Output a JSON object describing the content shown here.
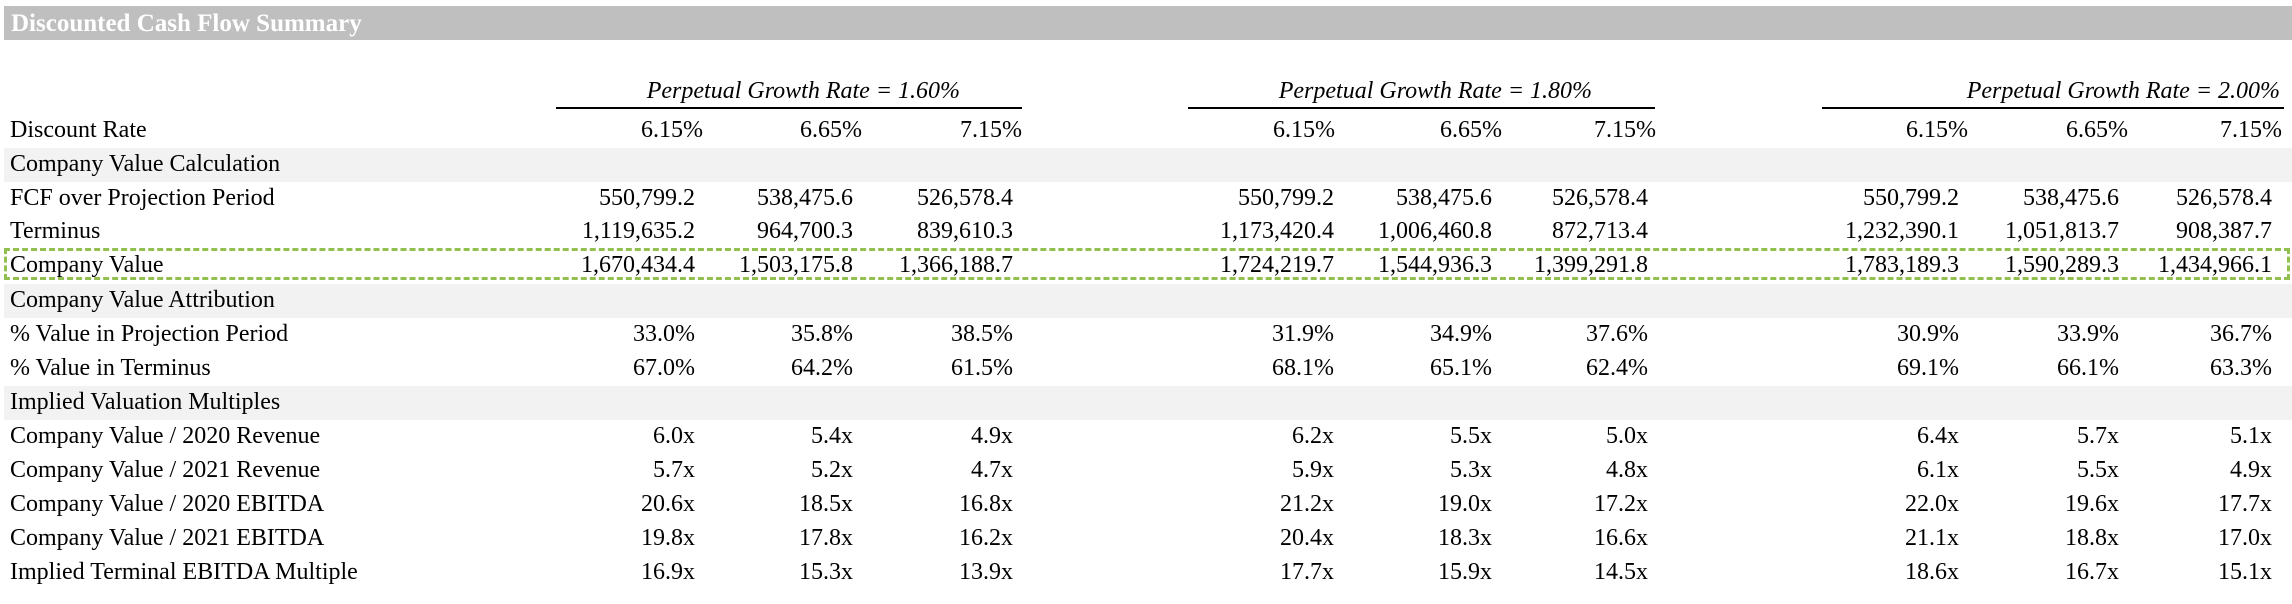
{
  "title": "Discounted Cash Flow Summary",
  "highlight_color": "#92c050",
  "header_bar_color": "#bfbfbf",
  "band_color": "#f2f2f2",
  "groups": [
    {
      "label": "Perpetual Growth Rate = 1.60%"
    },
    {
      "label": "Perpetual Growth Rate = 1.80%"
    },
    {
      "label": "Perpetual Growth Rate = 2.00%"
    }
  ],
  "discount_rate": {
    "label": "Discount Rate",
    "values": [
      "6.15%",
      "6.65%",
      "7.15%",
      "6.15%",
      "6.65%",
      "7.15%",
      "6.15%",
      "6.65%",
      "7.15%"
    ]
  },
  "sections": {
    "value_calc": "Company Value Calculation",
    "value_attr": "Company Value Attribution",
    "multiples": "Implied Valuation Multiples"
  },
  "rows": [
    {
      "key": "fcf",
      "label": "FCF over Projection Period",
      "values": [
        "550,799.2",
        "538,475.6",
        "526,578.4",
        "550,799.2",
        "538,475.6",
        "526,578.4",
        "550,799.2",
        "538,475.6",
        "526,578.4"
      ]
    },
    {
      "key": "terminus",
      "label": "Terminus",
      "values": [
        "1,119,635.2",
        "964,700.3",
        "839,610.3",
        "1,173,420.4",
        "1,006,460.8",
        "872,713.4",
        "1,232,390.1",
        "1,051,813.7",
        "908,387.7"
      ]
    },
    {
      "key": "company_value",
      "label": "Company Value",
      "values": [
        "1,670,434.4",
        "1,503,175.8",
        "1,366,188.7",
        "1,724,219.7",
        "1,544,936.3",
        "1,399,291.8",
        "1,783,189.3",
        "1,590,289.3",
        "1,434,966.1"
      ]
    },
    {
      "key": "pct_projection",
      "label": "% Value in Projection Period",
      "values": [
        "33.0%",
        "35.8%",
        "38.5%",
        "31.9%",
        "34.9%",
        "37.6%",
        "30.9%",
        "33.9%",
        "36.7%"
      ]
    },
    {
      "key": "pct_terminus",
      "label": "% Value in Terminus",
      "values": [
        "67.0%",
        "64.2%",
        "61.5%",
        "68.1%",
        "65.1%",
        "62.4%",
        "69.1%",
        "66.1%",
        "63.3%"
      ]
    },
    {
      "key": "cv_2020_rev",
      "label": "Company Value / 2020 Revenue",
      "values": [
        "6.0x",
        "5.4x",
        "4.9x",
        "6.2x",
        "5.5x",
        "5.0x",
        "6.4x",
        "5.7x",
        "5.1x"
      ]
    },
    {
      "key": "cv_2021_rev",
      "label": "Company Value / 2021 Revenue",
      "values": [
        "5.7x",
        "5.2x",
        "4.7x",
        "5.9x",
        "5.3x",
        "4.8x",
        "6.1x",
        "5.5x",
        "4.9x"
      ]
    },
    {
      "key": "cv_2020_ebitda",
      "label": "Company Value / 2020 EBITDA",
      "values": [
        "20.6x",
        "18.5x",
        "16.8x",
        "21.2x",
        "19.0x",
        "17.2x",
        "22.0x",
        "19.6x",
        "17.7x"
      ]
    },
    {
      "key": "cv_2021_ebitda",
      "label": "Company Value / 2021 EBITDA",
      "values": [
        "19.8x",
        "17.8x",
        "16.2x",
        "20.4x",
        "18.3x",
        "16.6x",
        "21.1x",
        "18.8x",
        "17.0x"
      ]
    },
    {
      "key": "terminal_multiple",
      "label": "Implied Terminal EBITDA Multiple",
      "values": [
        "16.9x",
        "15.3x",
        "13.9x",
        "17.7x",
        "15.9x",
        "14.5x",
        "18.6x",
        "16.7x",
        "15.1x"
      ]
    }
  ]
}
